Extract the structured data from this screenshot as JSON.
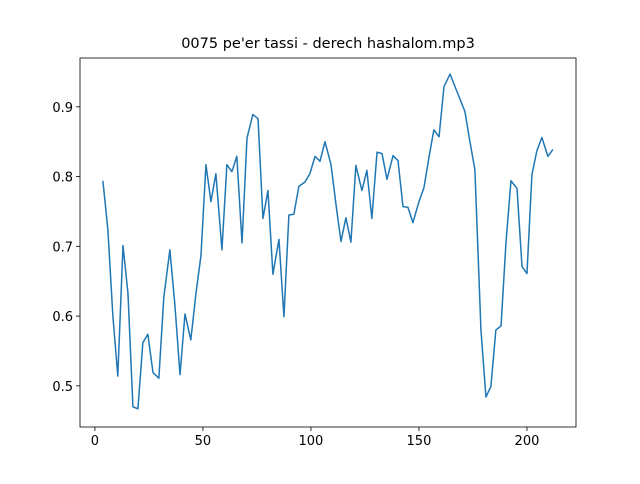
{
  "chart_data": {
    "type": "line",
    "title": "0075 pe'er tassi - derech hashalom.mp3",
    "x": [
      3.7,
      6.0,
      8.3,
      10.6,
      13.0,
      15.3,
      17.6,
      19.9,
      22.2,
      24.5,
      26.9,
      29.6,
      31.9,
      34.7,
      37.0,
      39.4,
      41.7,
      44.4,
      46.8,
      49.1,
      51.4,
      53.7,
      56.0,
      58.8,
      61.1,
      63.4,
      65.7,
      68.1,
      70.4,
      73.1,
      75.5,
      77.8,
      80.1,
      82.4,
      85.2,
      87.5,
      89.8,
      92.1,
      94.4,
      97.2,
      99.5,
      101.9,
      104.2,
      106.5,
      109.3,
      111.6,
      113.9,
      116.2,
      118.5,
      120.8,
      123.6,
      125.9,
      128.2,
      130.6,
      132.9,
      135.2,
      138.0,
      140.3,
      142.6,
      144.9,
      147.2,
      150.0,
      152.3,
      154.6,
      156.9,
      159.3,
      161.6,
      164.4,
      166.7,
      169.0,
      171.3,
      173.6,
      175.9,
      178.7,
      181.0,
      183.3,
      185.6,
      188.0,
      190.3,
      192.6,
      195.4,
      197.7,
      200.0,
      202.3,
      204.6,
      206.9,
      209.7,
      212.0
    ],
    "series": [
      {
        "color": "#1f77b4",
        "values": [
          0.794,
          0.724,
          0.601,
          0.514,
          0.701,
          0.633,
          0.47,
          0.467,
          0.562,
          0.574,
          0.519,
          0.511,
          0.627,
          0.695,
          0.617,
          0.516,
          0.603,
          0.566,
          0.633,
          0.687,
          0.817,
          0.764,
          0.804,
          0.695,
          0.817,
          0.807,
          0.829,
          0.705,
          0.855,
          0.889,
          0.883,
          0.74,
          0.78,
          0.66,
          0.71,
          0.599,
          0.745,
          0.746,
          0.786,
          0.792,
          0.804,
          0.829,
          0.822,
          0.85,
          0.817,
          0.76,
          0.707,
          0.741,
          0.706,
          0.816,
          0.78,
          0.809,
          0.74,
          0.835,
          0.833,
          0.796,
          0.83,
          0.823,
          0.757,
          0.756,
          0.734,
          0.764,
          0.784,
          0.827,
          0.867,
          0.857,
          0.929,
          0.947,
          0.929,
          0.911,
          0.893,
          0.85,
          0.81,
          0.58,
          0.484,
          0.499,
          0.58,
          0.586,
          0.706,
          0.794,
          0.783,
          0.671,
          0.661,
          0.803,
          0.837,
          0.856,
          0.829,
          0.839
        ]
      }
    ],
    "xlim": [
      -6.9,
      222.7
    ],
    "ylim": [
      0.441,
      0.97
    ],
    "xticks": [
      0,
      50,
      100,
      150,
      200
    ],
    "yticks": [
      0.5,
      0.6,
      0.7,
      0.8,
      0.9
    ]
  }
}
